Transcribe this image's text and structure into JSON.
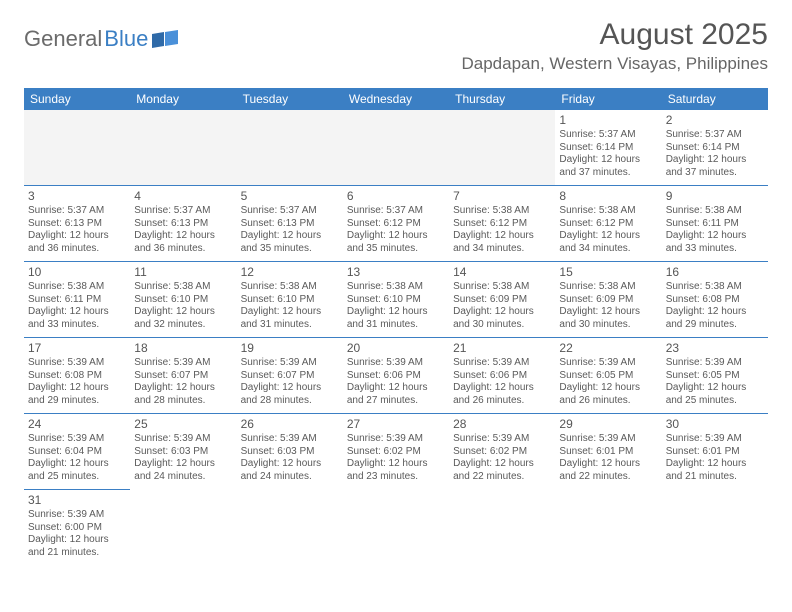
{
  "logo": {
    "part1": "General",
    "part2": "Blue"
  },
  "header": {
    "month_title": "August 2025",
    "location": "Dapdapan, Western Visayas, Philippines"
  },
  "colors": {
    "header_bg": "#3b7fc4",
    "header_text": "#ffffff",
    "rule": "#3b7fc4",
    "body_text": "#5a5a5a",
    "logo_gray": "#6b6b6b",
    "logo_blue": "#3b7fc4"
  },
  "weekdays": [
    "Sunday",
    "Monday",
    "Tuesday",
    "Wednesday",
    "Thursday",
    "Friday",
    "Saturday"
  ],
  "weeks": [
    [
      null,
      null,
      null,
      null,
      null,
      {
        "d": "1",
        "sr": "5:37 AM",
        "ss": "6:14 PM",
        "dl": "12 hours and 37 minutes."
      },
      {
        "d": "2",
        "sr": "5:37 AM",
        "ss": "6:14 PM",
        "dl": "12 hours and 37 minutes."
      }
    ],
    [
      {
        "d": "3",
        "sr": "5:37 AM",
        "ss": "6:13 PM",
        "dl": "12 hours and 36 minutes."
      },
      {
        "d": "4",
        "sr": "5:37 AM",
        "ss": "6:13 PM",
        "dl": "12 hours and 36 minutes."
      },
      {
        "d": "5",
        "sr": "5:37 AM",
        "ss": "6:13 PM",
        "dl": "12 hours and 35 minutes."
      },
      {
        "d": "6",
        "sr": "5:37 AM",
        "ss": "6:12 PM",
        "dl": "12 hours and 35 minutes."
      },
      {
        "d": "7",
        "sr": "5:38 AM",
        "ss": "6:12 PM",
        "dl": "12 hours and 34 minutes."
      },
      {
        "d": "8",
        "sr": "5:38 AM",
        "ss": "6:12 PM",
        "dl": "12 hours and 34 minutes."
      },
      {
        "d": "9",
        "sr": "5:38 AM",
        "ss": "6:11 PM",
        "dl": "12 hours and 33 minutes."
      }
    ],
    [
      {
        "d": "10",
        "sr": "5:38 AM",
        "ss": "6:11 PM",
        "dl": "12 hours and 33 minutes."
      },
      {
        "d": "11",
        "sr": "5:38 AM",
        "ss": "6:10 PM",
        "dl": "12 hours and 32 minutes."
      },
      {
        "d": "12",
        "sr": "5:38 AM",
        "ss": "6:10 PM",
        "dl": "12 hours and 31 minutes."
      },
      {
        "d": "13",
        "sr": "5:38 AM",
        "ss": "6:10 PM",
        "dl": "12 hours and 31 minutes."
      },
      {
        "d": "14",
        "sr": "5:38 AM",
        "ss": "6:09 PM",
        "dl": "12 hours and 30 minutes."
      },
      {
        "d": "15",
        "sr": "5:38 AM",
        "ss": "6:09 PM",
        "dl": "12 hours and 30 minutes."
      },
      {
        "d": "16",
        "sr": "5:38 AM",
        "ss": "6:08 PM",
        "dl": "12 hours and 29 minutes."
      }
    ],
    [
      {
        "d": "17",
        "sr": "5:39 AM",
        "ss": "6:08 PM",
        "dl": "12 hours and 29 minutes."
      },
      {
        "d": "18",
        "sr": "5:39 AM",
        "ss": "6:07 PM",
        "dl": "12 hours and 28 minutes."
      },
      {
        "d": "19",
        "sr": "5:39 AM",
        "ss": "6:07 PM",
        "dl": "12 hours and 28 minutes."
      },
      {
        "d": "20",
        "sr": "5:39 AM",
        "ss": "6:06 PM",
        "dl": "12 hours and 27 minutes."
      },
      {
        "d": "21",
        "sr": "5:39 AM",
        "ss": "6:06 PM",
        "dl": "12 hours and 26 minutes."
      },
      {
        "d": "22",
        "sr": "5:39 AM",
        "ss": "6:05 PM",
        "dl": "12 hours and 26 minutes."
      },
      {
        "d": "23",
        "sr": "5:39 AM",
        "ss": "6:05 PM",
        "dl": "12 hours and 25 minutes."
      }
    ],
    [
      {
        "d": "24",
        "sr": "5:39 AM",
        "ss": "6:04 PM",
        "dl": "12 hours and 25 minutes."
      },
      {
        "d": "25",
        "sr": "5:39 AM",
        "ss": "6:03 PM",
        "dl": "12 hours and 24 minutes."
      },
      {
        "d": "26",
        "sr": "5:39 AM",
        "ss": "6:03 PM",
        "dl": "12 hours and 24 minutes."
      },
      {
        "d": "27",
        "sr": "5:39 AM",
        "ss": "6:02 PM",
        "dl": "12 hours and 23 minutes."
      },
      {
        "d": "28",
        "sr": "5:39 AM",
        "ss": "6:02 PM",
        "dl": "12 hours and 22 minutes."
      },
      {
        "d": "29",
        "sr": "5:39 AM",
        "ss": "6:01 PM",
        "dl": "12 hours and 22 minutes."
      },
      {
        "d": "30",
        "sr": "5:39 AM",
        "ss": "6:01 PM",
        "dl": "12 hours and 21 minutes."
      }
    ],
    [
      {
        "d": "31",
        "sr": "5:39 AM",
        "ss": "6:00 PM",
        "dl": "12 hours and 21 minutes."
      },
      null,
      null,
      null,
      null,
      null,
      null
    ]
  ],
  "labels": {
    "sunrise": "Sunrise: ",
    "sunset": "Sunset: ",
    "daylight": "Daylight: "
  }
}
